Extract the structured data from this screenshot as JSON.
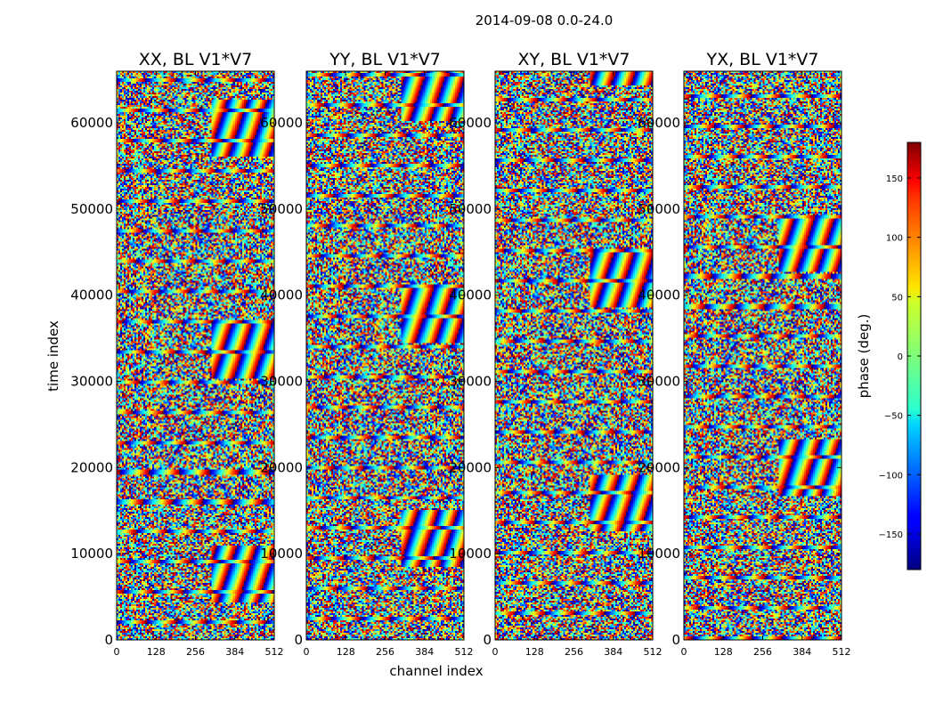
{
  "chart_data": {
    "type": "heatmap",
    "title": "2014-09-08 0.0-24.0",
    "xlabel": "channel index",
    "ylabel": "time index",
    "xlim": [
      0,
      512
    ],
    "ylim": [
      0,
      66000
    ],
    "xticks": [
      0,
      128,
      256,
      384,
      512
    ],
    "yticks": [
      0,
      10000,
      20000,
      30000,
      40000,
      50000,
      60000
    ],
    "panels": [
      {
        "title": "XX, BL V1*V7"
      },
      {
        "title": "YY, BL V1*V7"
      },
      {
        "title": "XY, BL V1*V7"
      },
      {
        "title": "YX, BL V1*V7"
      }
    ],
    "colorbar": {
      "label": "phase (deg.)",
      "range": [
        -180,
        180
      ],
      "ticks": [
        -150,
        -100,
        -50,
        0,
        50,
        100,
        150
      ],
      "colormap": "jet"
    }
  }
}
